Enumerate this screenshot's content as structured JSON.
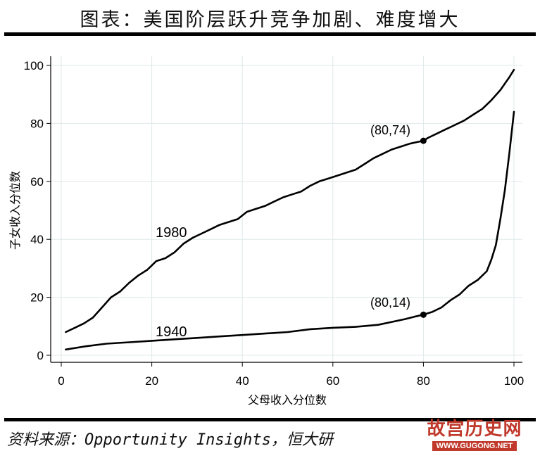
{
  "header": {
    "title": "图表：美国阶层跃升竞争加剧、难度增大"
  },
  "footer": {
    "source": "资料来源：Opportunity Insights，恒大研"
  },
  "watermark": {
    "text": "故宫历史网",
    "url": "WWW.GUGONG.NET"
  },
  "colors": {
    "line": "#000000",
    "grid": "#dfe8ea",
    "watermark": "#c0392b"
  },
  "chart_data": {
    "type": "line",
    "xlabel": "父母收入分位数",
    "ylabel": "子女收入分位数",
    "xlim": [
      0,
      100
    ],
    "ylim": [
      0,
      100
    ],
    "xticks": [
      0,
      20,
      40,
      60,
      80,
      100
    ],
    "yticks": [
      0,
      20,
      40,
      60,
      80,
      100
    ],
    "grid": true,
    "series": [
      {
        "name": "1980",
        "x": [
          1,
          3,
          5,
          7,
          9,
          11,
          13,
          15,
          17,
          19,
          21,
          23,
          25,
          27,
          29,
          31,
          33,
          35,
          37,
          39,
          41,
          43,
          45,
          47,
          49,
          51,
          53,
          55,
          57,
          59,
          61,
          63,
          65,
          67,
          69,
          71,
          73,
          75,
          77,
          79,
          80,
          81,
          83,
          85,
          87,
          89,
          91,
          93,
          95,
          97,
          99,
          100
        ],
        "y": [
          8,
          9.5,
          11,
          13,
          16.5,
          20,
          22,
          25,
          27.5,
          29.5,
          32.5,
          33.5,
          35.5,
          38.5,
          40.5,
          42,
          43.5,
          45,
          46,
          47,
          49.5,
          50.5,
          51.5,
          53,
          54.5,
          55.5,
          56.5,
          58.5,
          60,
          61,
          62,
          63,
          64,
          66,
          68,
          69.5,
          71,
          72,
          73,
          73.7,
          74,
          75,
          76.5,
          78,
          79.5,
          81,
          83,
          85,
          88,
          91.5,
          96,
          98.5
        ]
      },
      {
        "name": "1940",
        "x": [
          1,
          5,
          10,
          15,
          20,
          25,
          30,
          35,
          40,
          45,
          50,
          55,
          60,
          65,
          70,
          73,
          76,
          78,
          80,
          82,
          84,
          86,
          88,
          90,
          92,
          94,
          95,
          96,
          97,
          98,
          99,
          100
        ],
        "y": [
          2,
          3,
          4,
          4.5,
          5,
          5.5,
          6,
          6.5,
          7,
          7.5,
          8,
          9,
          9.5,
          9.8,
          10.5,
          11.5,
          12.5,
          13.3,
          14,
          15,
          16.5,
          19,
          21,
          24,
          26,
          29,
          33,
          38,
          47,
          57,
          70,
          84
        ]
      }
    ],
    "annotations": [
      {
        "series": "1980",
        "x": 80,
        "y": 74,
        "label": "(80,74)"
      },
      {
        "series": "1940",
        "x": 80,
        "y": 14,
        "label": "(80,14)"
      }
    ]
  }
}
